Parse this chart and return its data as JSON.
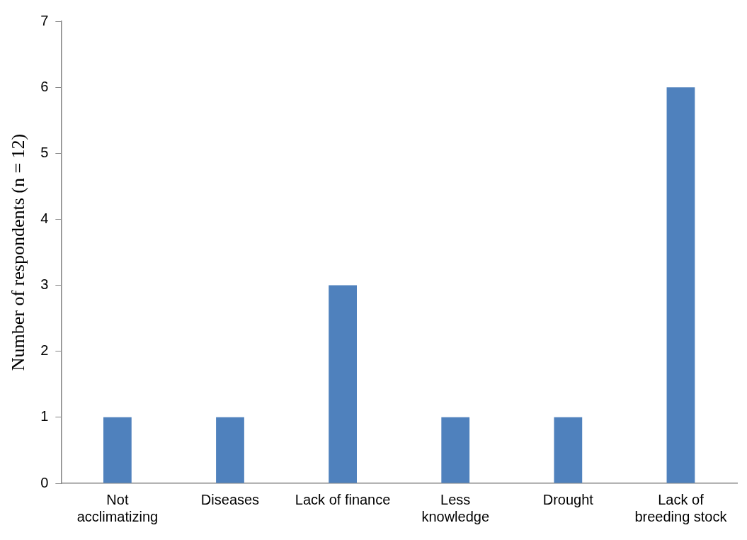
{
  "chart_data": {
    "type": "bar",
    "ylabel": "Number of respondents (n = 12)",
    "categories": [
      "Not acclimatizing",
      "Diseases",
      "Lack of finance",
      "Less knowledge",
      "Drought",
      "Lack of breeding stock"
    ],
    "values": [
      1,
      1,
      3,
      1,
      1,
      6
    ],
    "color": "#4f81bd",
    "ylim": [
      0,
      7
    ],
    "yticks": [
      0,
      1,
      2,
      3,
      4,
      5,
      6,
      7
    ],
    "grid": false,
    "legend": false
  }
}
